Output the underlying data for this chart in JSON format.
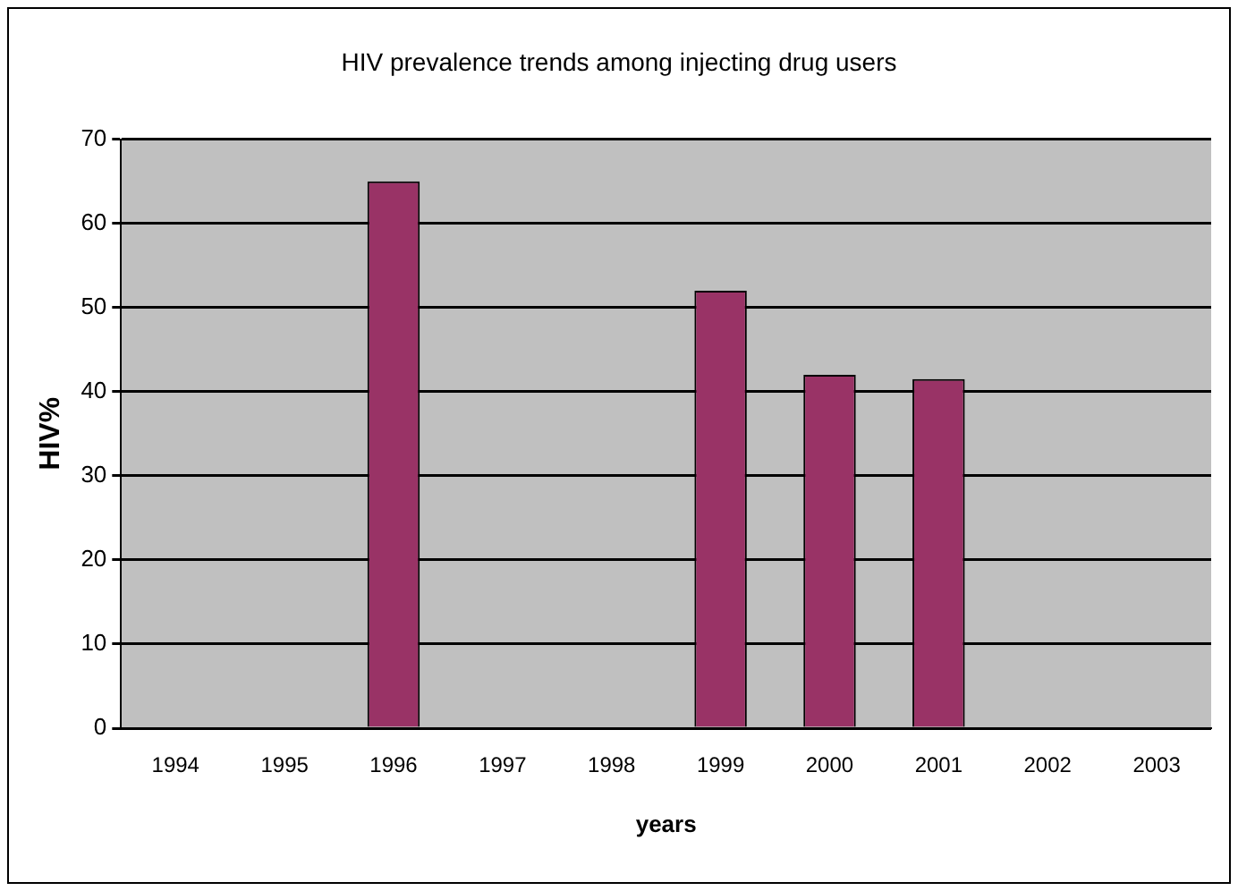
{
  "chart_data": {
    "type": "bar",
    "title": "HIV prevalence trends among injecting drug users",
    "xlabel": "years",
    "ylabel": "HIV%",
    "categories": [
      "1994",
      "1995",
      "1996",
      "1997",
      "1998",
      "1999",
      "2000",
      "2001",
      "2002",
      "2003"
    ],
    "values": [
      null,
      null,
      65,
      null,
      null,
      52,
      42,
      41.5,
      null,
      null
    ],
    "color": "#993366",
    "ylim": [
      0,
      70
    ],
    "yticks": [
      0,
      10,
      20,
      30,
      40,
      50,
      60,
      70
    ],
    "grid": "y",
    "legend": false
  }
}
